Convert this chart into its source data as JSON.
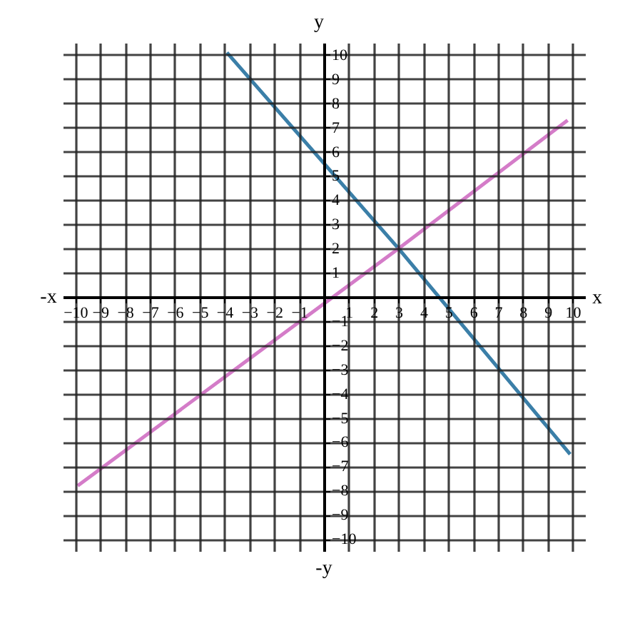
{
  "chart_data": {
    "type": "line",
    "xlabel": "x",
    "ylabel": "y",
    "annotations": [
      "-x",
      "-y"
    ],
    "xlim": [
      -10.5,
      10.5
    ],
    "ylim": [
      -10.5,
      10.5
    ],
    "xticks": [
      -10,
      -9,
      -8,
      -7,
      -6,
      -5,
      -4,
      -3,
      -2,
      -1,
      1,
      2,
      3,
      4,
      5,
      6,
      7,
      8,
      9,
      10
    ],
    "yticks": [
      -10,
      -9,
      -8,
      -7,
      -6,
      -5,
      -4,
      -3,
      -2,
      -1,
      1,
      2,
      3,
      4,
      5,
      6,
      7,
      8,
      9,
      10
    ],
    "grid": true,
    "series": [
      {
        "color": "#3b7fa8",
        "x": [
          -3.9,
          3,
          9.9
        ],
        "values": [
          10.1,
          2,
          -6.5
        ]
      },
      {
        "color": "#d47cc8",
        "x": [
          -9.9,
          3,
          9.8
        ],
        "values": [
          -7.8,
          2,
          7.3
        ]
      }
    ]
  }
}
